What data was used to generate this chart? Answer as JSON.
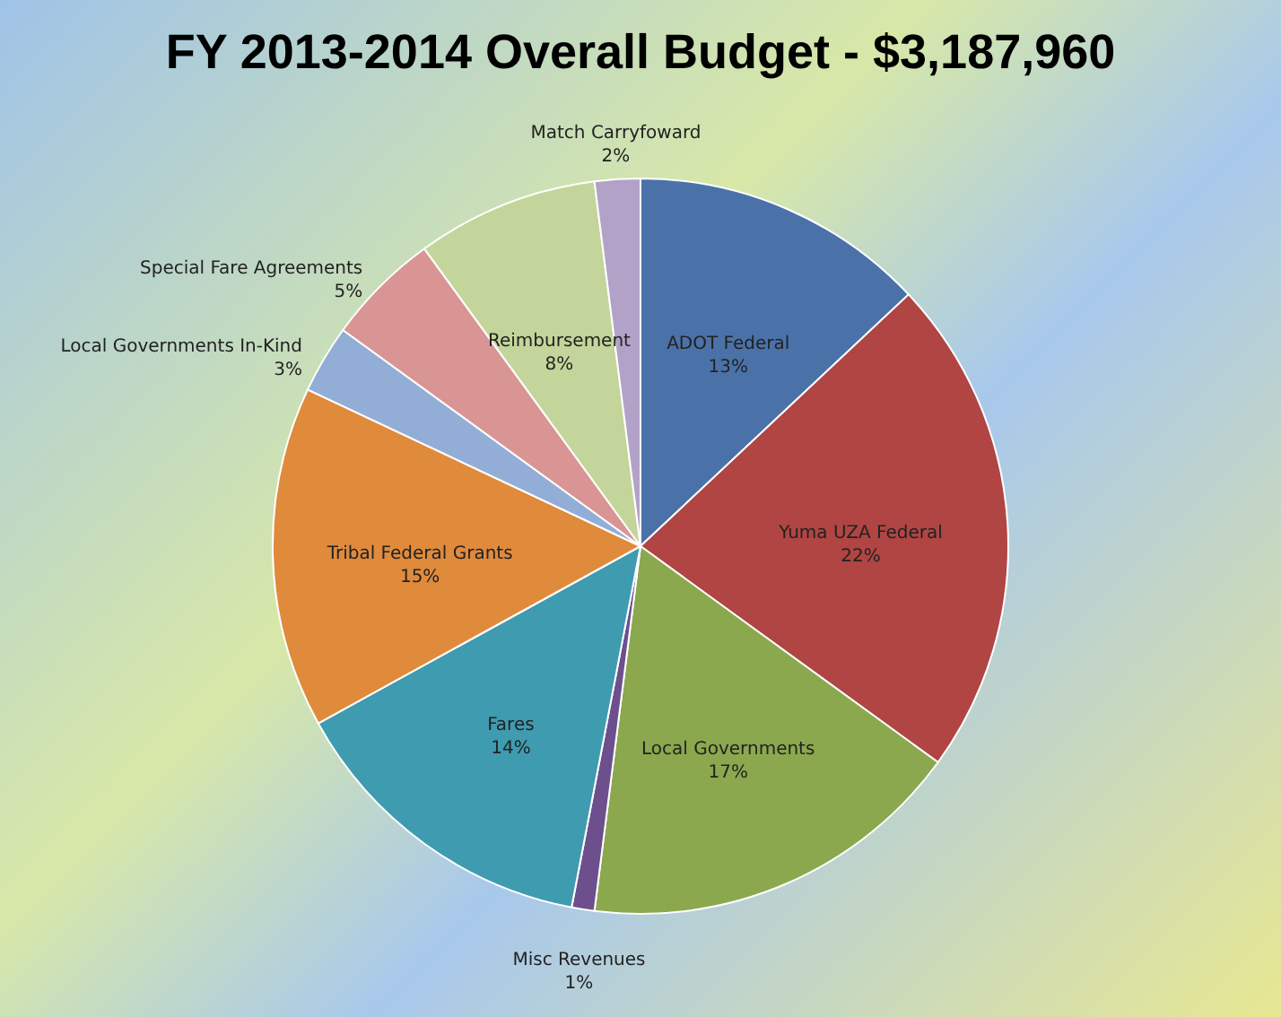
{
  "chart_data": {
    "type": "pie",
    "title": "FY 2013-2014 Overall Budget - $3,187,960",
    "categories": [
      "ADOT Federal",
      "Yuma UZA Federal",
      "Local Governments",
      "Misc Revenues",
      "Fares",
      "Tribal Federal Grants",
      "Local Governments In-Kind",
      "Special Fare Agreements",
      "Reimbursement",
      "Match Carryfoward"
    ],
    "values": [
      13,
      22,
      17,
      1,
      14,
      15,
      3,
      5,
      8,
      2
    ],
    "value_labels": [
      "13%",
      "22%",
      "17%",
      "1%",
      "14%",
      "15%",
      "3%",
      "5%",
      "8%",
      "2%"
    ],
    "colors": [
      "#4a72a8",
      "#b04543",
      "#8ba84e",
      "#6c4f8c",
      "#3f9bb0",
      "#e08a3c",
      "#92aed6",
      "#d99594",
      "#c3d59b",
      "#b3a2c7"
    ],
    "legend": false
  }
}
